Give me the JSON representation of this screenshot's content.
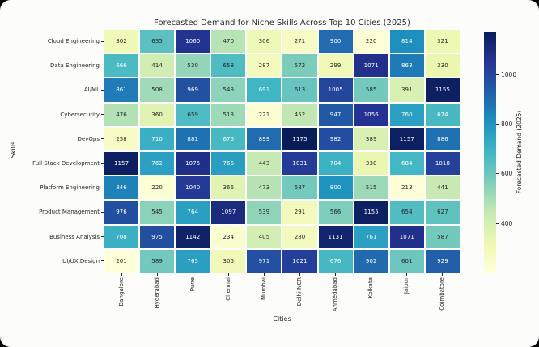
{
  "figure": {
    "page_background": "#060606",
    "card_background": "#fcfcfb",
    "grid_line_color": "#ffffff",
    "text_color": "#262626",
    "annot_light_color": "#ffffff",
    "annot_dark_color": "#262626"
  },
  "chart_data": {
    "type": "heatmap",
    "title": "Forecasted Demand for Niche Skills Across Top 10 Cities (2025)",
    "xlabel": "Cities",
    "ylabel": "Skills",
    "colorbar_label": "Forecasted Demand (2025)",
    "colorbar_ticks": [
      400,
      600,
      800,
      1000
    ],
    "colormap": "YlGnBu",
    "colormap_anchors": [
      "#ffffd9",
      "#edf8b1",
      "#c7e9b4",
      "#7fcdbb",
      "#41b6c4",
      "#1d91c0",
      "#225ea8",
      "#253494",
      "#081d58"
    ],
    "vmin": 201,
    "vmax": 1175,
    "legend_position": "right",
    "grid": false,
    "x_categories": [
      "Bangalore",
      "Hyderabad",
      "Pune",
      "Chennai",
      "Mumbai",
      "Delhi NCR",
      "Ahmedabad",
      "Kolkata",
      "Jaipur",
      "Coimbatore"
    ],
    "y_categories": [
      "Cloud Engineering",
      "Data Engineering",
      "AI/ML",
      "Cybersecurity",
      "DevOps",
      "Full Stack Development",
      "Platform Engineering",
      "Product Management",
      "Business Analysis",
      "UI/UX Design"
    ],
    "values": [
      [
        302,
        635,
        1060,
        470,
        306,
        271,
        900,
        220,
        814,
        321
      ],
      [
        666,
        414,
        530,
        658,
        287,
        572,
        299,
        1071,
        863,
        330
      ],
      [
        861,
        508,
        969,
        543,
        691,
        613,
        1005,
        585,
        391,
        1155
      ],
      [
        476,
        360,
        659,
        513,
        221,
        452,
        947,
        1056,
        760,
        674
      ],
      [
        258,
        710,
        881,
        675,
        899,
        1175,
        982,
        389,
        1157,
        886
      ],
      [
        1157,
        762,
        1075,
        766,
        443,
        1031,
        704,
        330,
        684,
        1018
      ],
      [
        846,
        220,
        1040,
        366,
        473,
        587,
        800,
        515,
        213,
        441
      ],
      [
        976,
        545,
        764,
        1097,
        539,
        291,
        566,
        1155,
        654,
        627
      ],
      [
        708,
        975,
        1142,
        234,
        405,
        280,
        1131,
        761,
        1071,
        587
      ],
      [
        201,
        589,
        765,
        305,
        971,
        1021,
        676,
        902,
        601,
        929
      ]
    ]
  }
}
